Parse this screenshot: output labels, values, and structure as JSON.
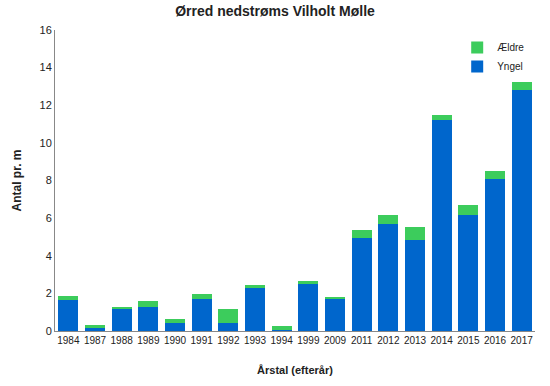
{
  "chart_data": {
    "type": "bar",
    "stacked": true,
    "title": "Ørred nedstrøms Vilholt Mølle",
    "x_label": "Årstal (efterår)",
    "y_label": "Antal pr. m",
    "categories": [
      "1984",
      "1987",
      "1988",
      "1989",
      "1990",
      "1991",
      "1992",
      "1993",
      "1994",
      "1999",
      "2009",
      "2011",
      "2012",
      "2013",
      "2014",
      "2015",
      "2016",
      "2017"
    ],
    "series": [
      {
        "name": "Yngel",
        "color": "#0066cc",
        "values": [
          1.65,
          0.15,
          1.15,
          1.25,
          0.45,
          1.7,
          0.45,
          2.3,
          0.05,
          2.5,
          1.7,
          4.95,
          5.7,
          4.85,
          11.2,
          6.15,
          8.1,
          12.8
        ]
      },
      {
        "name": "Ældre",
        "color": "#3ccc5c",
        "values": [
          0.2,
          0.15,
          0.15,
          0.35,
          0.2,
          0.25,
          0.7,
          0.15,
          0.2,
          0.15,
          0.1,
          0.4,
          0.45,
          0.7,
          0.3,
          0.55,
          0.4,
          0.45
        ]
      }
    ],
    "ylim": [
      0,
      16
    ],
    "yticks": [
      0,
      2,
      4,
      6,
      8,
      10,
      12,
      14,
      16
    ],
    "grid": false,
    "legend": "top right"
  }
}
